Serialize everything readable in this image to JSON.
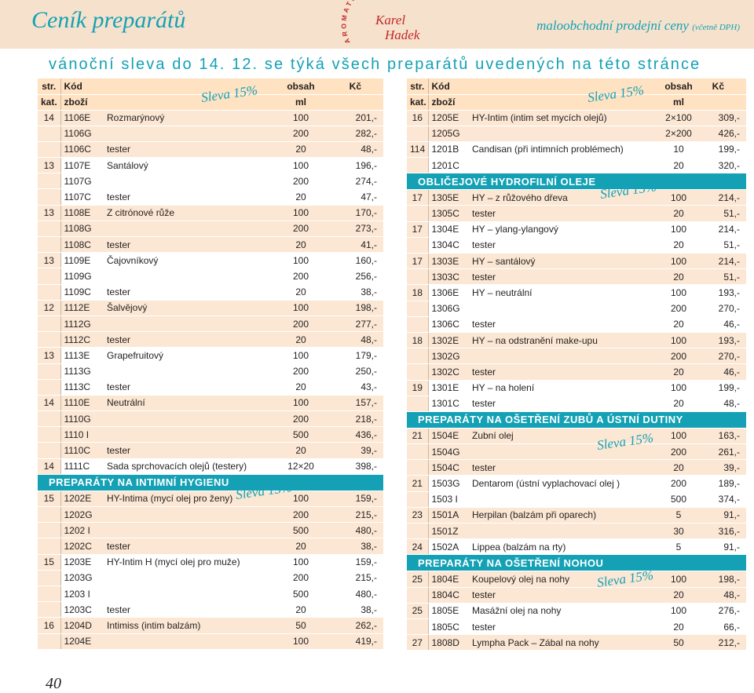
{
  "header": {
    "title": "Ceník preparátů",
    "subtitle_main": "maloobchodní prodejní ceny",
    "subtitle_note": "(včetně DPH)",
    "logo": {
      "arc_text": "AROMATERAPIE",
      "name_line1": "Karel",
      "name_line2": "Hadek"
    }
  },
  "banner": "vánoční sleva do 14. 12. se týká všech preparátů uvedených na této stránce",
  "columns": {
    "str": "str.",
    "kat": "kat.",
    "kod": "Kód",
    "zbozi": "zboží",
    "obsah": "obsah",
    "ml": "ml",
    "kc": "Kč"
  },
  "discount_label": "Sleva 15%",
  "left_table": [
    {
      "kind": "row",
      "alt": false,
      "str": "14",
      "kod": "1106E",
      "name": "Rozmarýnový",
      "obsah": "100",
      "kc": "201,-"
    },
    {
      "kind": "row",
      "alt": false,
      "str": "",
      "kod": "1106G",
      "name": "",
      "obsah": "200",
      "kc": "282,-"
    },
    {
      "kind": "row",
      "alt": false,
      "str": "",
      "kod": "1106C",
      "name": "tester",
      "obsah": "20",
      "kc": "48,-"
    },
    {
      "kind": "row",
      "alt": true,
      "str": "13",
      "kod": "1107E",
      "name": "Santálový",
      "obsah": "100",
      "kc": "196,-"
    },
    {
      "kind": "row",
      "alt": true,
      "str": "",
      "kod": "1107G",
      "name": "",
      "obsah": "200",
      "kc": "274,-"
    },
    {
      "kind": "row",
      "alt": true,
      "str": "",
      "kod": "1107C",
      "name": "tester",
      "obsah": "20",
      "kc": "47,-"
    },
    {
      "kind": "row",
      "alt": false,
      "str": "13",
      "kod": "1108E",
      "name": "Z citrónové růže",
      "obsah": "100",
      "kc": "170,-"
    },
    {
      "kind": "row",
      "alt": false,
      "str": "",
      "kod": "1108G",
      "name": "",
      "obsah": "200",
      "kc": "273,-"
    },
    {
      "kind": "row",
      "alt": false,
      "str": "",
      "kod": "1108C",
      "name": "tester",
      "obsah": "20",
      "kc": "41,-"
    },
    {
      "kind": "row",
      "alt": true,
      "str": "13",
      "kod": "1109E",
      "name": "Čajovníkový",
      "obsah": "100",
      "kc": "160,-"
    },
    {
      "kind": "row",
      "alt": true,
      "str": "",
      "kod": "1109G",
      "name": "",
      "obsah": "200",
      "kc": "256,-"
    },
    {
      "kind": "row",
      "alt": true,
      "str": "",
      "kod": "1109C",
      "name": "tester",
      "obsah": "20",
      "kc": "38,-"
    },
    {
      "kind": "row",
      "alt": false,
      "str": "12",
      "kod": "1112E",
      "name": "Šalvějový",
      "obsah": "100",
      "kc": "198,-"
    },
    {
      "kind": "row",
      "alt": false,
      "str": "",
      "kod": "1112G",
      "name": "",
      "obsah": "200",
      "kc": "277,-"
    },
    {
      "kind": "row",
      "alt": false,
      "str": "",
      "kod": "1112C",
      "name": "tester",
      "obsah": "20",
      "kc": "48,-"
    },
    {
      "kind": "row",
      "alt": true,
      "str": "13",
      "kod": "1113E",
      "name": "Grapefruitový",
      "obsah": "100",
      "kc": "179,-"
    },
    {
      "kind": "row",
      "alt": true,
      "str": "",
      "kod": "1113G",
      "name": "",
      "obsah": "200",
      "kc": "250,-"
    },
    {
      "kind": "row",
      "alt": true,
      "str": "",
      "kod": "1113C",
      "name": "tester",
      "obsah": "20",
      "kc": "43,-"
    },
    {
      "kind": "row",
      "alt": false,
      "str": "14",
      "kod": "1110E",
      "name": "Neutrální",
      "obsah": "100",
      "kc": "157,-"
    },
    {
      "kind": "row",
      "alt": false,
      "str": "",
      "kod": "1110G",
      "name": "",
      "obsah": "200",
      "kc": "218,-"
    },
    {
      "kind": "row",
      "alt": false,
      "str": "",
      "kod": "1110 I",
      "name": "",
      "obsah": "500",
      "kc": "436,-"
    },
    {
      "kind": "row",
      "alt": false,
      "str": "",
      "kod": "1110C",
      "name": "tester",
      "obsah": "20",
      "kc": "39,-"
    },
    {
      "kind": "row",
      "alt": true,
      "str": "14",
      "kod": "1111C",
      "name": "Sada sprchovacích olejů (testery)",
      "obsah": "12×20",
      "kc": "398,-"
    },
    {
      "kind": "section",
      "label": "PREPARÁTY NA INTIMNÍ HYGIENU"
    },
    {
      "kind": "row",
      "alt": false,
      "str": "15",
      "kod": "1202E",
      "name": "HY-Intima (mycí olej pro ženy)",
      "obsah": "100",
      "kc": "159,-"
    },
    {
      "kind": "row",
      "alt": false,
      "str": "",
      "kod": "1202G",
      "name": "",
      "obsah": "200",
      "kc": "215,-"
    },
    {
      "kind": "row",
      "alt": false,
      "str": "",
      "kod": "1202 I",
      "name": "",
      "obsah": "500",
      "kc": "480,-"
    },
    {
      "kind": "row",
      "alt": false,
      "str": "",
      "kod": "1202C",
      "name": "tester",
      "obsah": "20",
      "kc": "38,-"
    },
    {
      "kind": "row",
      "alt": true,
      "str": "15",
      "kod": "1203E",
      "name": "HY-Intim H (mycí olej pro muže)",
      "obsah": "100",
      "kc": "159,-"
    },
    {
      "kind": "row",
      "alt": true,
      "str": "",
      "kod": "1203G",
      "name": "",
      "obsah": "200",
      "kc": "215,-"
    },
    {
      "kind": "row",
      "alt": true,
      "str": "",
      "kod": "1203 I",
      "name": "",
      "obsah": "500",
      "kc": "480,-"
    },
    {
      "kind": "row",
      "alt": true,
      "str": "",
      "kod": "1203C",
      "name": "tester",
      "obsah": "20",
      "kc": "38,-"
    },
    {
      "kind": "row",
      "alt": false,
      "str": "16",
      "kod": "1204D",
      "name": "Intimiss (intim balzám)",
      "obsah": "50",
      "kc": "262,-"
    },
    {
      "kind": "row",
      "alt": false,
      "str": "",
      "kod": "1204E",
      "name": "",
      "obsah": "100",
      "kc": "419,-"
    }
  ],
  "right_table": [
    {
      "kind": "row",
      "alt": false,
      "str": "16",
      "kod": "1205E",
      "name": "HY-Intim (intim set mycích olejů)",
      "obsah": "2×100",
      "kc": "309,-"
    },
    {
      "kind": "row",
      "alt": false,
      "str": "",
      "kod": "1205G",
      "name": "",
      "obsah": "2×200",
      "kc": "426,-"
    },
    {
      "kind": "row",
      "alt": true,
      "str": "114",
      "kod": "1201B",
      "name": "Candisan (při intimních problémech)",
      "obsah": "10",
      "kc": "199,-"
    },
    {
      "kind": "row",
      "alt": true,
      "str": "",
      "kod": "1201C",
      "name": "",
      "obsah": "20",
      "kc": "320,-"
    },
    {
      "kind": "section",
      "label": "OBLIČEJOVÉ HYDROFILNÍ OLEJE"
    },
    {
      "kind": "row",
      "alt": false,
      "str": "17",
      "kod": "1305E",
      "name": "HY – z růžového dřeva",
      "obsah": "100",
      "kc": "214,-"
    },
    {
      "kind": "row",
      "alt": false,
      "str": "",
      "kod": "1305C",
      "name": "tester",
      "obsah": "20",
      "kc": "51,-"
    },
    {
      "kind": "row",
      "alt": true,
      "str": "17",
      "kod": "1304E",
      "name": "HY – ylang-ylangový",
      "obsah": "100",
      "kc": "214,-"
    },
    {
      "kind": "row",
      "alt": true,
      "str": "",
      "kod": "1304C",
      "name": "tester",
      "obsah": "20",
      "kc": "51,-"
    },
    {
      "kind": "row",
      "alt": false,
      "str": "17",
      "kod": "1303E",
      "name": "HY – santálový",
      "obsah": "100",
      "kc": "214,-"
    },
    {
      "kind": "row",
      "alt": false,
      "str": "",
      "kod": "1303C",
      "name": "tester",
      "obsah": "20",
      "kc": "51,-"
    },
    {
      "kind": "row",
      "alt": true,
      "str": "18",
      "kod": "1306E",
      "name": "HY – neutrální",
      "obsah": "100",
      "kc": "193,-"
    },
    {
      "kind": "row",
      "alt": true,
      "str": "",
      "kod": "1306G",
      "name": "",
      "obsah": "200",
      "kc": "270,-"
    },
    {
      "kind": "row",
      "alt": true,
      "str": "",
      "kod": "1306C",
      "name": "tester",
      "obsah": "20",
      "kc": "46,-"
    },
    {
      "kind": "row",
      "alt": false,
      "str": "18",
      "kod": "1302E",
      "name": "HY – na odstranění make-upu",
      "obsah": "100",
      "kc": "193,-"
    },
    {
      "kind": "row",
      "alt": false,
      "str": "",
      "kod": "1302G",
      "name": "",
      "obsah": "200",
      "kc": "270,-"
    },
    {
      "kind": "row",
      "alt": false,
      "str": "",
      "kod": "1302C",
      "name": "tester",
      "obsah": "20",
      "kc": "46,-"
    },
    {
      "kind": "row",
      "alt": true,
      "str": "19",
      "kod": "1301E",
      "name": "HY – na holení",
      "obsah": "100",
      "kc": "199,-"
    },
    {
      "kind": "row",
      "alt": true,
      "str": "",
      "kod": "1301C",
      "name": "tester",
      "obsah": "20",
      "kc": "48,-"
    },
    {
      "kind": "section",
      "label": "PREPARÁTY NA OŠETŘENÍ ZUBŮ A ÚSTNÍ DUTINY"
    },
    {
      "kind": "row",
      "alt": false,
      "str": "21",
      "kod": "1504E",
      "name": "Zubní olej",
      "obsah": "100",
      "kc": "163,-"
    },
    {
      "kind": "row",
      "alt": false,
      "str": "",
      "kod": "1504G",
      "name": "",
      "obsah": "200",
      "kc": "261,-"
    },
    {
      "kind": "row",
      "alt": false,
      "str": "",
      "kod": "1504C",
      "name": "tester",
      "obsah": "20",
      "kc": "39,-"
    },
    {
      "kind": "row",
      "alt": true,
      "str": "21",
      "kod": "1503G",
      "name": "Dentarom (ústní vyplachovací olej )",
      "obsah": "200",
      "kc": "189,-"
    },
    {
      "kind": "row",
      "alt": true,
      "str": "",
      "kod": "1503 I",
      "name": "",
      "obsah": "500",
      "kc": "374,-"
    },
    {
      "kind": "row",
      "alt": false,
      "str": "23",
      "kod": "1501A",
      "name": "Herpilan (balzám při oparech)",
      "obsah": "5",
      "kc": "91,-"
    },
    {
      "kind": "row",
      "alt": false,
      "str": "",
      "kod": "1501Z",
      "name": "",
      "obsah": "30",
      "kc": "316,-"
    },
    {
      "kind": "row",
      "alt": true,
      "str": "24",
      "kod": "1502A",
      "name": "Lippea (balzám na rty)",
      "obsah": "5",
      "kc": "91,-"
    },
    {
      "kind": "section",
      "label": "PREPARÁTY NA OŠETŘENÍ NOHOU"
    },
    {
      "kind": "row",
      "alt": false,
      "str": "25",
      "kod": "1804E",
      "name": "Koupelový olej na nohy",
      "obsah": "100",
      "kc": "198,-"
    },
    {
      "kind": "row",
      "alt": false,
      "str": "",
      "kod": "1804C",
      "name": "tester",
      "obsah": "20",
      "kc": "48,-"
    },
    {
      "kind": "row",
      "alt": true,
      "str": "25",
      "kod": "1805E",
      "name": "Masážní olej na nohy",
      "obsah": "100",
      "kc": "276,-"
    },
    {
      "kind": "row",
      "alt": true,
      "str": "",
      "kod": "1805C",
      "name": "tester",
      "obsah": "20",
      "kc": "66,-"
    },
    {
      "kind": "row",
      "alt": false,
      "str": "27",
      "kod": "1808D",
      "name": "Lympha Pack – Zábal na nohy",
      "obsah": "50",
      "kc": "212,-"
    }
  ],
  "page_number": "40",
  "colors": {
    "accent": "#14a1b5",
    "logo": "#c0272d",
    "row_tint": "#fbe7d3",
    "header_band": "#f6e2cc"
  }
}
